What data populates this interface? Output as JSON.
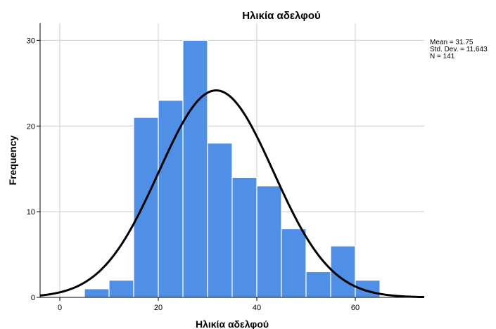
{
  "chart_data": {
    "type": "bar",
    "subtype": "histogram-with-normal-curve",
    "title": "Ηλικία αδελφού",
    "xlabel": "Ηλικία αδελφού",
    "ylabel": "Frequency",
    "bin_width": 5,
    "bins": [
      {
        "start": 5,
        "end": 10,
        "value": 1
      },
      {
        "start": 10,
        "end": 15,
        "value": 2
      },
      {
        "start": 15,
        "end": 20,
        "value": 21
      },
      {
        "start": 20,
        "end": 25,
        "value": 23
      },
      {
        "start": 25,
        "end": 30,
        "value": 30
      },
      {
        "start": 30,
        "end": 35,
        "value": 18
      },
      {
        "start": 35,
        "end": 40,
        "value": 14
      },
      {
        "start": 40,
        "end": 45,
        "value": 13
      },
      {
        "start": 45,
        "end": 50,
        "value": 8
      },
      {
        "start": 50,
        "end": 55,
        "value": 3
      },
      {
        "start": 55,
        "end": 60,
        "value": 6
      },
      {
        "start": 60,
        "end": 65,
        "value": 2
      }
    ],
    "xlim": [
      -4,
      74
    ],
    "ylim": [
      0,
      32
    ],
    "xticks": [
      0,
      20,
      40,
      60
    ],
    "yticks": [
      0,
      10,
      20,
      30
    ],
    "normal_curve": {
      "mean": 31.75,
      "sd": 11.643,
      "n": 141
    },
    "stats_text": [
      "Mean = 31.75",
      "Std. Dev. = 11.643",
      "N = 141"
    ],
    "grid": true,
    "bar_color": "#4f8fe6",
    "bar_edge_color": "#ffffff",
    "curve_color": "#000000",
    "grid_color": "#cccccc"
  }
}
